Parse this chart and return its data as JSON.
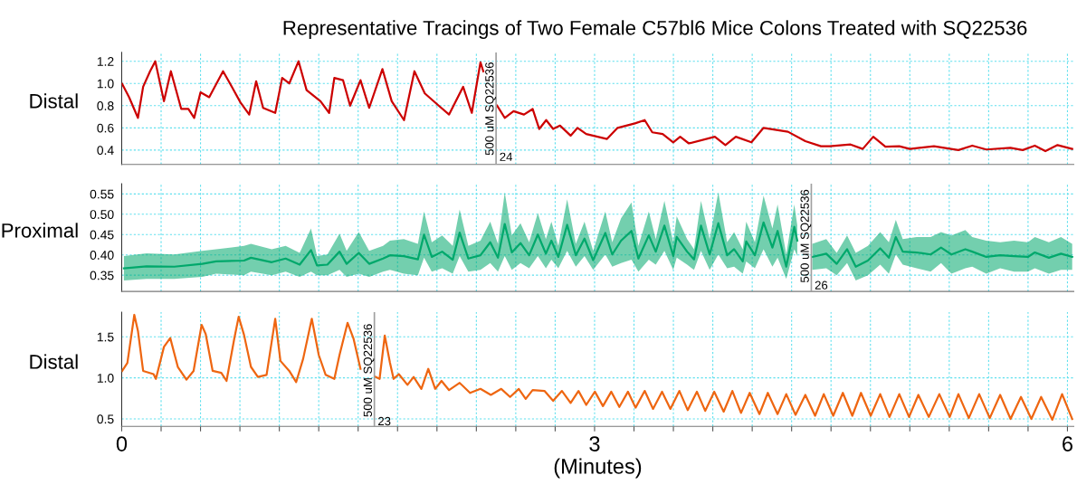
{
  "chart_data": [
    {
      "type": "line",
      "title": "Representative Tracings of Two Female C57bl6 Mice Colons Treated with SQ22536",
      "ylabel": "Distal",
      "xlim": [
        0,
        6.04
      ],
      "ylim": [
        0.27,
        1.28
      ],
      "xticks": [
        {
          "value": 0,
          "label": null
        },
        {
          "value": 0.25,
          "label": null
        },
        {
          "value": 0.5,
          "label": null
        },
        {
          "value": 0.75,
          "label": null
        },
        {
          "value": 1,
          "label": null
        },
        {
          "value": 1.25,
          "label": null
        },
        {
          "value": 1.5,
          "label": null
        },
        {
          "value": 1.75,
          "label": null
        },
        {
          "value": 2,
          "label": null
        },
        {
          "value": 2.25,
          "label": null
        },
        {
          "value": 2.5,
          "label": null
        },
        {
          "value": 2.75,
          "label": null
        },
        {
          "value": 3,
          "label": null
        },
        {
          "value": 3.25,
          "label": null
        },
        {
          "value": 3.5,
          "label": null
        },
        {
          "value": 3.75,
          "label": null
        },
        {
          "value": 4,
          "label": null
        },
        {
          "value": 4.25,
          "label": null
        },
        {
          "value": 4.5,
          "label": null
        },
        {
          "value": 4.75,
          "label": null
        },
        {
          "value": 5,
          "label": null
        },
        {
          "value": 5.25,
          "label": null
        },
        {
          "value": 5.5,
          "label": null
        },
        {
          "value": 5.75,
          "label": null
        },
        {
          "value": 6,
          "label": null
        }
      ],
      "yticks": [
        0.4,
        0.6,
        0.8,
        {
          "value": 1.0,
          "label": "1.0"
        },
        1.2
      ],
      "grid": true,
      "tick_labels": "y",
      "ref_lines": [
        {
          "axis": "x",
          "value": 2.375,
          "label": "500 uM SQ22536",
          "color": "#a0a0a0"
        }
      ],
      "annotations": [
        {
          "text": "24",
          "x": 2.375,
          "y": 0.33
        }
      ],
      "series": [
        {
          "color": "#cc0000",
          "x": [
            0.003,
            0.047,
            0.103,
            0.136,
            0.18,
            0.213,
            0.268,
            0.312,
            0.378,
            0.423,
            0.46,
            0.5,
            0.555,
            0.643,
            0.687,
            0.753,
            0.809,
            0.853,
            0.897,
            0.974,
            1.018,
            1.063,
            1.122,
            1.173,
            1.261,
            1.316,
            1.349,
            1.404,
            1.449,
            1.515,
            1.57,
            1.654,
            1.713,
            1.791,
            1.857,
            1.923,
            2.011,
            2.077,
            2.166,
            2.221,
            2.276,
            2.294,
            2.33,
            2.382,
            2.43,
            2.486,
            2.552,
            2.607,
            2.649,
            2.693,
            2.737,
            2.781,
            2.848,
            2.892,
            2.947,
            3.079,
            3.146,
            3.256,
            3.318,
            3.366,
            3.432,
            3.499,
            3.543,
            3.598,
            3.763,
            3.83,
            3.896,
            3.995,
            4.072,
            4.227,
            4.337,
            4.436,
            4.492,
            4.624,
            4.701,
            4.768,
            4.845,
            4.933,
            5.0,
            5.153,
            5.308,
            5.396,
            5.485,
            5.638,
            5.716,
            5.793,
            5.86,
            5.937,
            6.03
          ],
          "values": [
            0.995,
            0.876,
            0.69,
            0.97,
            1.11,
            1.2,
            0.84,
            1.11,
            0.77,
            0.77,
            0.69,
            0.92,
            0.876,
            1.11,
            1.0,
            0.83,
            0.72,
            1.02,
            0.78,
            0.735,
            1.05,
            1.0,
            1.2,
            0.94,
            0.84,
            0.735,
            1.05,
            1.03,
            0.8,
            1.03,
            0.78,
            1.13,
            0.84,
            0.67,
            1.11,
            0.91,
            0.8,
            0.72,
            0.97,
            0.735,
            1.19,
            1.11,
            null,
            0.8,
            0.69,
            0.75,
            0.72,
            0.77,
            0.59,
            0.67,
            0.59,
            0.62,
            0.53,
            0.6,
            0.545,
            0.5,
            0.6,
            0.64,
            0.67,
            0.56,
            0.545,
            0.47,
            0.52,
            0.46,
            0.52,
            0.445,
            0.52,
            0.47,
            0.6,
            0.565,
            0.48,
            0.435,
            0.435,
            0.45,
            0.41,
            0.52,
            0.43,
            0.435,
            0.41,
            0.435,
            0.4,
            0.44,
            0.405,
            0.42,
            0.4,
            0.44,
            0.39,
            0.445,
            0.41
          ]
        }
      ]
    },
    {
      "type": "line",
      "ylabel": "Proximal",
      "xlim": [
        0,
        6.04
      ],
      "ylim": [
        0.31,
        0.575
      ],
      "xticks": [
        {
          "value": 0,
          "label": null
        },
        {
          "value": 0.25,
          "label": null
        },
        {
          "value": 0.5,
          "label": null
        },
        {
          "value": 0.75,
          "label": null
        },
        {
          "value": 1,
          "label": null
        },
        {
          "value": 1.25,
          "label": null
        },
        {
          "value": 1.5,
          "label": null
        },
        {
          "value": 1.75,
          "label": null
        },
        {
          "value": 2,
          "label": null
        },
        {
          "value": 2.25,
          "label": null
        },
        {
          "value": 2.5,
          "label": null
        },
        {
          "value": 2.75,
          "label": null
        },
        {
          "value": 3,
          "label": null
        },
        {
          "value": 3.25,
          "label": null
        },
        {
          "value": 3.5,
          "label": null
        },
        {
          "value": 3.75,
          "label": null
        },
        {
          "value": 4,
          "label": null
        },
        {
          "value": 4.25,
          "label": null
        },
        {
          "value": 4.5,
          "label": null
        },
        {
          "value": 4.75,
          "label": null
        },
        {
          "value": 5,
          "label": null
        },
        {
          "value": 5.25,
          "label": null
        },
        {
          "value": 5.5,
          "label": null
        },
        {
          "value": 5.75,
          "label": null
        },
        {
          "value": 6,
          "label": null
        }
      ],
      "yticks": [
        0.35,
        {
          "value": 0.4,
          "label": "0.40"
        },
        0.45,
        {
          "value": 0.5,
          "label": "0.50"
        },
        0.55
      ],
      "grid": true,
      "tick_labels": "y",
      "ref_lines": [
        {
          "axis": "x",
          "value": 4.375,
          "label": "500 uM SQ22536",
          "color": "#a0a0a0"
        }
      ],
      "annotations": [
        {
          "text": "26",
          "x": 4.375,
          "y": 0.323
        }
      ],
      "series": [
        {
          "color": "#00a86b",
          "x": [
            0.014,
            0.158,
            0.334,
            0.511,
            0.599,
            0.776,
            0.82,
            0.952,
            1.04,
            1.129,
            1.201,
            1.239,
            1.305,
            1.382,
            1.427,
            1.504,
            1.57,
            1.658,
            1.702,
            1.79,
            1.879,
            1.918,
            1.967,
            2.033,
            2.1,
            2.144,
            2.199,
            2.276,
            2.338,
            2.387,
            2.43,
            2.475,
            2.53,
            2.585,
            2.64,
            2.691,
            2.726,
            2.77,
            2.826,
            2.881,
            2.936,
            2.991,
            3.068,
            3.112,
            3.168,
            3.234,
            3.278,
            3.344,
            3.388,
            3.443,
            3.499,
            3.521,
            3.587,
            3.631,
            3.675,
            3.73,
            3.785,
            3.841,
            3.885,
            3.94,
            3.962,
            4.017,
            4.072,
            4.128,
            4.161,
            4.216,
            4.267,
            4.286,
            4.33,
            4.381,
            4.47,
            4.536,
            4.602,
            4.657,
            4.734,
            4.812,
            4.867,
            4.911,
            4.955,
            5.043,
            5.132,
            5.198,
            5.264,
            5.352,
            5.396,
            5.485,
            5.573,
            5.661,
            5.749,
            5.793,
            5.882,
            5.959,
            6.03
          ],
          "values": [
            0.367,
            0.372,
            0.371,
            0.378,
            0.384,
            0.386,
            0.393,
            0.382,
            0.391,
            0.376,
            0.412,
            0.374,
            0.376,
            0.408,
            0.378,
            0.405,
            0.378,
            0.391,
            0.399,
            0.397,
            0.389,
            0.45,
            0.395,
            0.408,
            0.388,
            0.455,
            0.391,
            0.399,
            0.431,
            0.393,
            0.476,
            0.406,
            0.429,
            0.399,
            0.45,
            0.403,
            0.435,
            0.395,
            0.474,
            0.399,
            0.44,
            0.387,
            0.454,
            0.401,
            0.435,
            0.459,
            0.391,
            0.448,
            0.408,
            0.472,
            0.397,
            0.444,
            0.408,
            0.389,
            0.472,
            0.401,
            0.478,
            0.399,
            0.414,
            0.384,
            0.433,
            0.399,
            0.48,
            0.418,
            0.459,
            0.371,
            0.469,
            0.435,
            null,
            0.395,
            0.403,
            0.378,
            0.414,
            0.371,
            0.386,
            0.416,
            0.393,
            0.444,
            0.408,
            0.406,
            0.401,
            0.418,
            0.401,
            0.414,
            0.408,
            0.395,
            0.399,
            0.397,
            0.395,
            0.406,
            0.393,
            0.403,
            0.395
          ],
          "upper": [
            0.397,
            0.404,
            0.401,
            0.41,
            0.414,
            0.422,
            0.427,
            0.414,
            0.422,
            0.405,
            0.465,
            0.397,
            0.401,
            0.452,
            0.41,
            0.456,
            0.41,
            0.422,
            0.435,
            0.439,
            0.427,
            0.507,
            0.431,
            0.448,
            0.422,
            0.512,
            0.422,
            0.435,
            0.482,
            0.427,
            0.554,
            0.448,
            0.478,
            0.431,
            0.503,
            0.439,
            0.482,
            0.422,
            0.537,
            0.427,
            0.482,
            0.41,
            0.507,
            0.431,
            0.49,
            0.529,
            0.422,
            0.507,
            0.439,
            0.533,
            0.431,
            0.495,
            0.439,
            0.414,
            0.533,
            0.439,
            0.554,
            0.431,
            0.456,
            0.414,
            0.482,
            0.431,
            0.546,
            0.465,
            0.524,
            0.401,
            0.524,
            0.473,
            null,
            0.427,
            0.439,
            0.405,
            0.448,
            0.405,
            0.422,
            0.456,
            0.431,
            0.486,
            0.439,
            0.444,
            0.444,
            0.456,
            0.448,
            0.461,
            0.444,
            0.435,
            0.431,
            0.435,
            0.431,
            0.444,
            0.431,
            0.444,
            0.427
          ],
          "lower": [
            0.337,
            0.341,
            0.341,
            0.346,
            0.354,
            0.35,
            0.359,
            0.35,
            0.359,
            0.346,
            0.359,
            0.35,
            0.35,
            0.363,
            0.346,
            0.354,
            0.346,
            0.359,
            0.363,
            0.354,
            0.35,
            0.393,
            0.359,
            0.367,
            0.354,
            0.397,
            0.359,
            0.363,
            0.38,
            0.359,
            0.397,
            0.363,
            0.38,
            0.367,
            0.397,
            0.367,
            0.388,
            0.367,
            0.41,
            0.371,
            0.397,
            0.363,
            0.401,
            0.371,
            0.38,
            0.388,
            0.359,
            0.388,
            0.376,
            0.41,
            0.363,
            0.393,
            0.376,
            0.363,
            0.41,
            0.363,
            0.401,
            0.367,
            0.371,
            0.354,
            0.384,
            0.367,
            0.414,
            0.371,
            0.393,
            0.341,
            0.414,
            0.397,
            null,
            0.363,
            0.367,
            0.35,
            0.38,
            0.337,
            0.35,
            0.376,
            0.354,
            0.401,
            0.376,
            0.367,
            0.359,
            0.38,
            0.354,
            0.367,
            0.371,
            0.354,
            0.367,
            0.359,
            0.359,
            0.367,
            0.354,
            0.363,
            0.363
          ]
        }
      ]
    },
    {
      "type": "line",
      "ylabel": "Distal",
      "xlabel": "(Minutes)",
      "xlim": [
        0,
        6.04
      ],
      "ylim": [
        0.41,
        1.8
      ],
      "xticks": [
        0,
        {
          "value": 0.25,
          "label": null
        },
        {
          "value": 0.5,
          "label": null
        },
        {
          "value": 0.75,
          "label": null
        },
        {
          "value": 1,
          "label": null
        },
        {
          "value": 1.25,
          "label": null
        },
        {
          "value": 1.5,
          "label": null
        },
        {
          "value": 1.75,
          "label": null
        },
        {
          "value": 2,
          "label": null
        },
        {
          "value": 2.25,
          "label": null
        },
        {
          "value": 2.5,
          "label": null
        },
        {
          "value": 2.75,
          "label": null
        },
        3,
        {
          "value": 3.25,
          "label": null
        },
        {
          "value": 3.5,
          "label": null
        },
        {
          "value": 3.75,
          "label": null
        },
        {
          "value": 4,
          "label": null
        },
        {
          "value": 4.25,
          "label": null
        },
        {
          "value": 4.5,
          "label": null
        },
        {
          "value": 4.75,
          "label": null
        },
        {
          "value": 5,
          "label": null
        },
        {
          "value": 5.25,
          "label": null
        },
        {
          "value": 5.5,
          "label": null
        },
        {
          "value": 5.75,
          "label": null
        },
        6
      ],
      "yticks": [
        0.5,
        {
          "value": 1.0,
          "label": "1.0"
        },
        1.5
      ],
      "grid": true,
      "ref_lines": [
        {
          "axis": "x",
          "value": 1.603,
          "label": "500 uM SQ22536",
          "color": "#a0a0a0"
        }
      ],
      "annotations": [
        {
          "text": "23",
          "x": 1.603,
          "y": 0.46
        }
      ],
      "series": [
        {
          "color": "#ee6611",
          "x": [
            0.003,
            0.036,
            0.08,
            0.103,
            0.136,
            0.202,
            0.217,
            0.268,
            0.308,
            0.356,
            0.411,
            0.456,
            0.507,
            0.533,
            0.577,
            0.632,
            0.665,
            0.714,
            0.742,
            0.776,
            0.82,
            0.864,
            0.919,
            0.974,
            1.007,
            1.063,
            1.107,
            1.151,
            1.206,
            1.25,
            1.294,
            1.349,
            1.382,
            1.433,
            1.471,
            1.515,
            1.56,
            1.61,
            1.636,
            1.669,
            1.702,
            1.725,
            1.758,
            1.813,
            1.852,
            1.901,
            1.945,
            1.989,
            2.029,
            2.077,
            2.144,
            2.21,
            2.276,
            2.342,
            2.408,
            2.464,
            2.519,
            2.563,
            2.607,
            2.682,
            2.737,
            2.793,
            2.848,
            2.898,
            2.947,
            3.002,
            3.053,
            3.106,
            3.157,
            3.212,
            3.26,
            3.318,
            3.371,
            3.428,
            3.481,
            3.538,
            3.591,
            3.649,
            3.702,
            3.759,
            3.819,
            3.874,
            3.929,
            3.984,
            4.046,
            4.099,
            4.161,
            4.216,
            4.275,
            4.337,
            4.399,
            4.454,
            4.514,
            4.575,
            4.635,
            4.69,
            4.752,
            4.812,
            4.871,
            4.933,
            4.995,
            5.054,
            5.12,
            5.187,
            5.253,
            5.308,
            5.374,
            5.44,
            5.507,
            5.573,
            5.639,
            5.705,
            5.771,
            5.833,
            5.904,
            5.966,
            6.03
          ],
          "values": [
            1.085,
            1.183,
            1.768,
            1.573,
            1.085,
            1.046,
            0.988,
            1.378,
            1.485,
            1.134,
            0.978,
            1.085,
            1.646,
            1.534,
            1.085,
            1.061,
            0.963,
            1.476,
            1.744,
            1.524,
            1.134,
            1.012,
            1.037,
            1.72,
            1.207,
            1.085,
            0.949,
            1.232,
            1.72,
            1.28,
            1.037,
            0.988,
            1.28,
            1.671,
            1.476,
            1.11,
            null,
            1.012,
            0.988,
            1.515,
            1.183,
            0.988,
            1.046,
            0.915,
            1.012,
            0.866,
            1.11,
            0.866,
            0.963,
            0.851,
            0.939,
            0.817,
            0.866,
            0.793,
            0.866,
            0.768,
            0.866,
            0.744,
            0.851,
            0.841,
            0.72,
            0.841,
            0.695,
            0.841,
            0.671,
            0.832,
            0.656,
            0.832,
            0.646,
            0.832,
            0.637,
            0.841,
            0.622,
            0.832,
            0.622,
            0.841,
            0.607,
            0.832,
            0.598,
            0.832,
            0.588,
            0.841,
            0.573,
            0.817,
            0.559,
            0.817,
            0.559,
            0.802,
            0.549,
            0.793,
            0.539,
            0.802,
            0.539,
            0.817,
            0.539,
            0.817,
            0.539,
            0.802,
            0.524,
            0.802,
            0.524,
            0.793,
            0.524,
            0.802,
            0.524,
            0.802,
            0.51,
            0.802,
            0.51,
            0.793,
            0.5,
            0.768,
            0.5,
            0.768,
            0.49,
            0.802,
            0.5
          ]
        }
      ]
    }
  ]
}
